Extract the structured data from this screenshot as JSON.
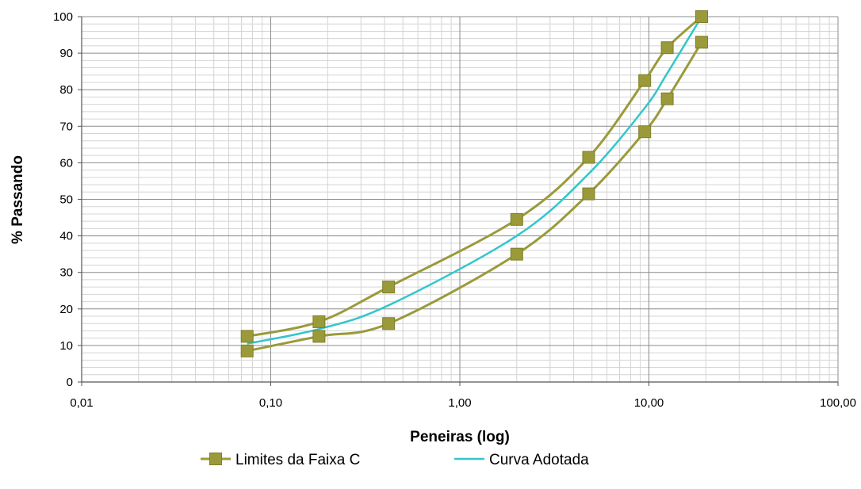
{
  "chart_data": {
    "type": "line",
    "xlabel": "Peneiras (log)",
    "ylabel": "% Passando",
    "x_scale": "log",
    "xlim": [
      0.01,
      100
    ],
    "ylim": [
      0,
      100
    ],
    "x_tick_labels": [
      "0,01",
      "0,10",
      "1,00",
      "10,00",
      "100,00"
    ],
    "y_tick_labels": [
      "0",
      "10",
      "20",
      "30",
      "40",
      "50",
      "60",
      "70",
      "80",
      "90",
      "100"
    ],
    "grid": true,
    "legend_position": "bottom",
    "series": [
      {
        "name": "Limites da Faixa C",
        "color": "#9a9a3a",
        "marker": "square",
        "values": [
          {
            "x": 0.075,
            "y": 12.5
          },
          {
            "x": 0.18,
            "y": 16.5
          },
          {
            "x": 0.42,
            "y": 26
          },
          {
            "x": 2.0,
            "y": 44.5
          },
          {
            "x": 4.8,
            "y": 61.5
          },
          {
            "x": 9.5,
            "y": 82.5
          },
          {
            "x": 12.5,
            "y": 91.5
          },
          {
            "x": 19.0,
            "y": 100
          }
        ]
      },
      {
        "name": "Limites da Faixa C",
        "legend": false,
        "color": "#9a9a3a",
        "marker": "square",
        "values": [
          {
            "x": 0.075,
            "y": 8.5
          },
          {
            "x": 0.18,
            "y": 12.5
          },
          {
            "x": 0.42,
            "y": 16
          },
          {
            "x": 2.0,
            "y": 35
          },
          {
            "x": 4.8,
            "y": 51.5
          },
          {
            "x": 9.5,
            "y": 68.5
          },
          {
            "x": 12.5,
            "y": 77.5
          },
          {
            "x": 19.0,
            "y": 93
          }
        ]
      },
      {
        "name": "Curva Adotada",
        "color": "#33c6cc",
        "marker": "none",
        "values": [
          {
            "x": 0.075,
            "y": 10.5
          },
          {
            "x": 0.18,
            "y": 14.5
          },
          {
            "x": 0.42,
            "y": 21
          },
          {
            "x": 2.0,
            "y": 40
          },
          {
            "x": 4.8,
            "y": 57
          },
          {
            "x": 9.5,
            "y": 75
          },
          {
            "x": 12.5,
            "y": 84.5
          },
          {
            "x": 19.0,
            "y": 100
          }
        ]
      }
    ]
  }
}
